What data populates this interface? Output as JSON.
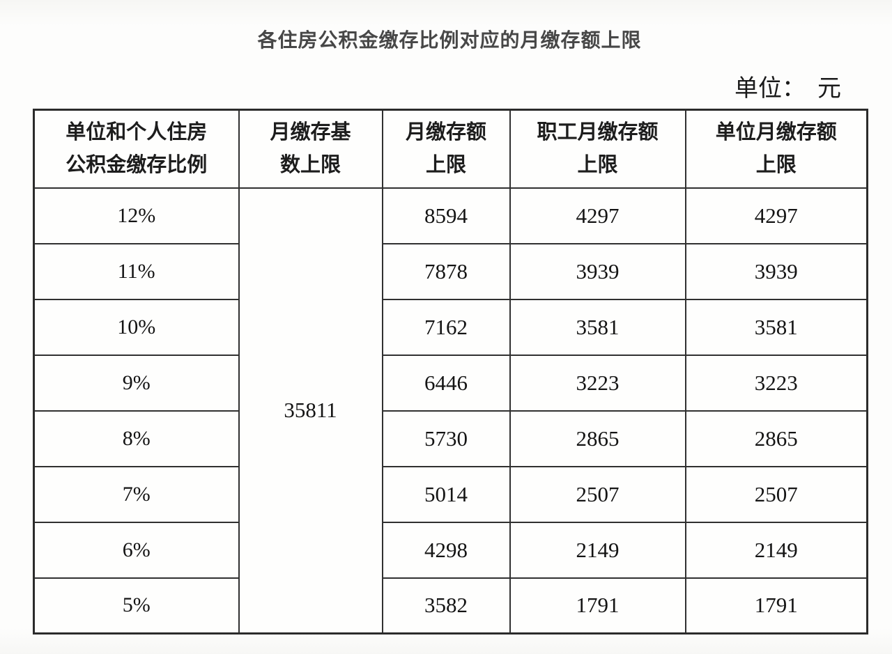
{
  "title": "各住房公积金缴存比例对应的月缴存额上限",
  "unit_label": "单位：　元",
  "colors": {
    "title_text": "#474747",
    "table_border": "#303030",
    "body_text": "#141414",
    "background": "#fdfdfc"
  },
  "table": {
    "headers": [
      {
        "line1": "单位和个人住房",
        "line2": "公积金缴存比例"
      },
      {
        "line1": "月缴存基",
        "line2": "数上限"
      },
      {
        "line1": "月缴存额",
        "line2": "上限"
      },
      {
        "line1": "职工月缴存额",
        "line2": "上限"
      },
      {
        "line1": "单位月缴存额",
        "line2": "上限"
      }
    ],
    "base_cap_merged": "35811",
    "rows": [
      {
        "ratio": "12%",
        "monthly_cap": "8594",
        "employee_cap": "4297",
        "employer_cap": "4297"
      },
      {
        "ratio": "11%",
        "monthly_cap": "7878",
        "employee_cap": "3939",
        "employer_cap": "3939"
      },
      {
        "ratio": "10%",
        "monthly_cap": "7162",
        "employee_cap": "3581",
        "employer_cap": "3581"
      },
      {
        "ratio": "9%",
        "monthly_cap": "6446",
        "employee_cap": "3223",
        "employer_cap": "3223"
      },
      {
        "ratio": "8%",
        "monthly_cap": "5730",
        "employee_cap": "2865",
        "employer_cap": "2865"
      },
      {
        "ratio": "7%",
        "monthly_cap": "5014",
        "employee_cap": "2507",
        "employer_cap": "2507"
      },
      {
        "ratio": "6%",
        "monthly_cap": "4298",
        "employee_cap": "2149",
        "employer_cap": "2149"
      },
      {
        "ratio": "5%",
        "monthly_cap": "3582",
        "employee_cap": "1791",
        "employer_cap": "1791"
      }
    ]
  }
}
